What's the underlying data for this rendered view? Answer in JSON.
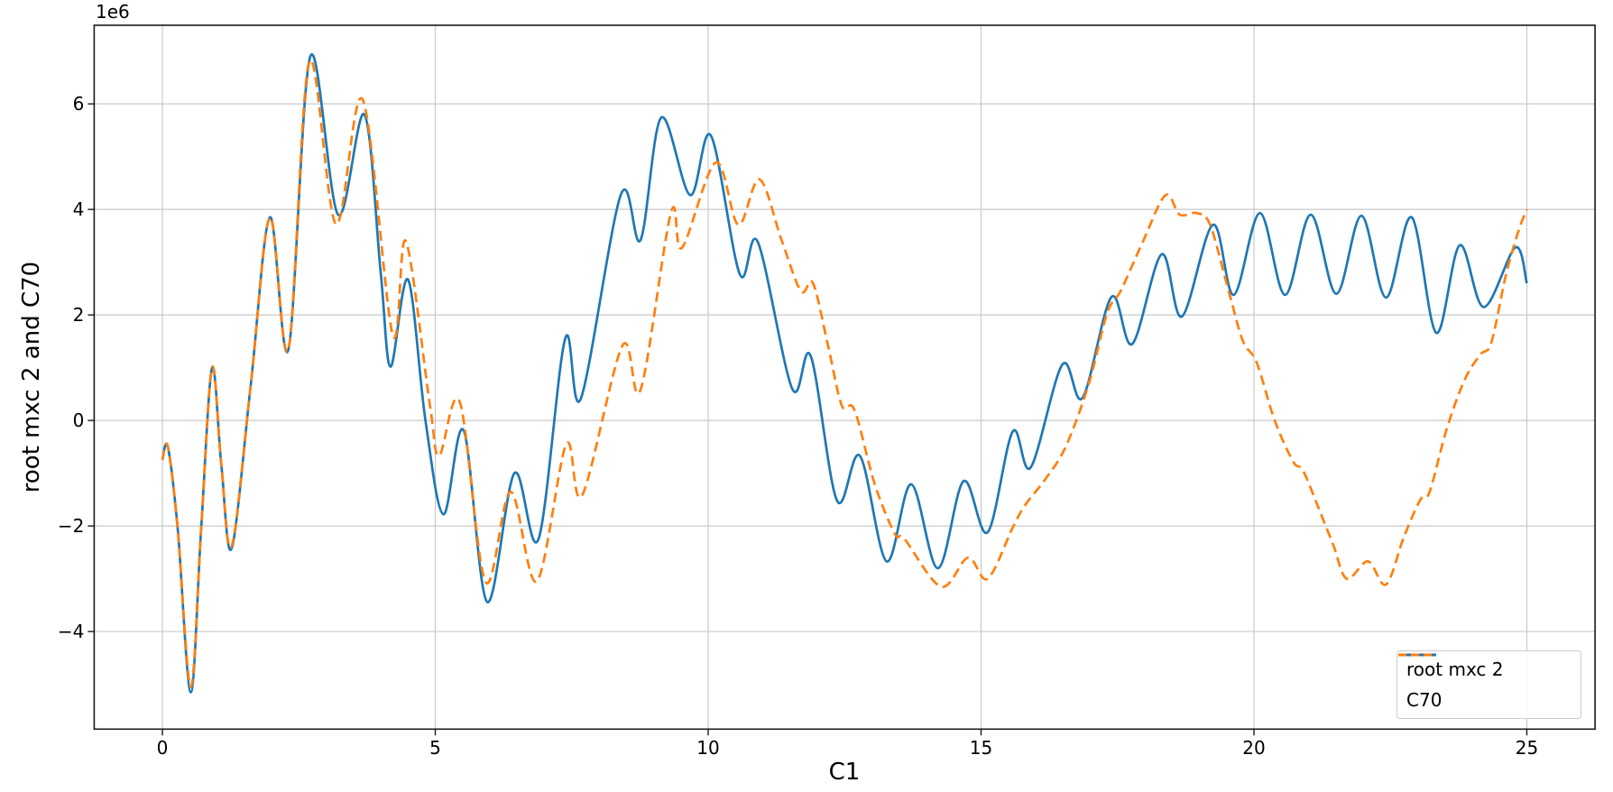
{
  "figure": {
    "xlabel": "C1",
    "ylabel": "root mxc 2 and C70",
    "offset_text": "1e6"
  },
  "legend": {
    "entries": [
      {
        "label": "root mxc 2",
        "color": "#1f77b4",
        "style": "solid"
      },
      {
        "label": "C70",
        "color": "#ff7f0e",
        "style": "dashed"
      }
    ]
  },
  "chart_data": {
    "type": "line",
    "title": "",
    "xlabel": "C1",
    "ylabel": "root mxc 2 and C70",
    "y_unit_multiplier": 1000000,
    "y_offset_text": "1e6",
    "xlim": [
      -1.25,
      26.25
    ],
    "ylim": [
      -5.85,
      7.49
    ],
    "xticks": [
      0,
      5,
      10,
      15,
      20,
      25
    ],
    "yticks": [
      -4,
      -2,
      0,
      2,
      4,
      6
    ],
    "grid": true,
    "legend_position": "lower right",
    "series": [
      {
        "name": "root mxc 2",
        "color": "#1f77b4",
        "linestyle": "solid",
        "linewidth": 2.7,
        "points": [
          [
            0.0,
            -0.75
          ],
          [
            0.1,
            -0.5
          ],
          [
            0.28,
            -2.05
          ],
          [
            0.52,
            -5.15
          ],
          [
            0.71,
            -2.05
          ],
          [
            0.91,
            1.0
          ],
          [
            1.08,
            -0.85
          ],
          [
            1.27,
            -2.42
          ],
          [
            1.62,
            0.68
          ],
          [
            1.97,
            3.85
          ],
          [
            2.31,
            1.35
          ],
          [
            2.71,
            6.9
          ],
          [
            3.22,
            3.9
          ],
          [
            3.7,
            5.8
          ],
          [
            4.0,
            2.8
          ],
          [
            4.18,
            1.02
          ],
          [
            4.5,
            2.67
          ],
          [
            4.82,
            0.0
          ],
          [
            5.15,
            -1.78
          ],
          [
            5.52,
            -0.19
          ],
          [
            5.95,
            -3.44
          ],
          [
            6.45,
            -1.0
          ],
          [
            6.89,
            -2.25
          ],
          [
            7.38,
            1.55
          ],
          [
            7.67,
            0.42
          ],
          [
            8.4,
            4.28
          ],
          [
            8.76,
            3.42
          ],
          [
            9.14,
            5.74
          ],
          [
            9.67,
            4.27
          ],
          [
            10.05,
            5.4
          ],
          [
            10.58,
            2.77
          ],
          [
            10.91,
            3.38
          ],
          [
            11.54,
            0.6
          ],
          [
            11.88,
            1.22
          ],
          [
            12.36,
            -1.52
          ],
          [
            12.78,
            -0.67
          ],
          [
            13.27,
            -2.67
          ],
          [
            13.72,
            -1.21
          ],
          [
            14.21,
            -2.8
          ],
          [
            14.68,
            -1.15
          ],
          [
            15.12,
            -2.12
          ],
          [
            15.58,
            -0.21
          ],
          [
            15.91,
            -0.89
          ],
          [
            16.49,
            1.06
          ],
          [
            16.86,
            0.43
          ],
          [
            17.39,
            2.34
          ],
          [
            17.77,
            1.45
          ],
          [
            18.31,
            3.15
          ],
          [
            18.68,
            1.97
          ],
          [
            19.25,
            3.71
          ],
          [
            19.63,
            2.38
          ],
          [
            20.11,
            3.93
          ],
          [
            20.57,
            2.38
          ],
          [
            21.04,
            3.9
          ],
          [
            21.51,
            2.4
          ],
          [
            21.97,
            3.88
          ],
          [
            22.42,
            2.33
          ],
          [
            22.89,
            3.85
          ],
          [
            23.34,
            1.66
          ],
          [
            23.77,
            3.32
          ],
          [
            24.21,
            2.15
          ],
          [
            24.79,
            3.28
          ],
          [
            25.0,
            2.6
          ]
        ]
      },
      {
        "name": "C70",
        "color": "#ff7f0e",
        "linestyle": "dashed",
        "linewidth": 2.7,
        "points": [
          [
            0.0,
            -0.75
          ],
          [
            0.1,
            -0.5
          ],
          [
            0.28,
            -2.05
          ],
          [
            0.52,
            -5.05
          ],
          [
            0.71,
            -2.05
          ],
          [
            0.91,
            1.0
          ],
          [
            1.08,
            -0.85
          ],
          [
            1.27,
            -2.38
          ],
          [
            1.62,
            0.68
          ],
          [
            1.97,
            3.85
          ],
          [
            2.31,
            1.35
          ],
          [
            2.69,
            6.8
          ],
          [
            3.18,
            3.72
          ],
          [
            3.67,
            6.08
          ],
          [
            4.22,
            1.62
          ],
          [
            4.46,
            3.4
          ],
          [
            4.9,
            0.3
          ],
          [
            5.07,
            -0.67
          ],
          [
            5.45,
            0.35
          ],
          [
            5.92,
            -3.06
          ],
          [
            6.38,
            -1.35
          ],
          [
            6.86,
            -3.05
          ],
          [
            7.4,
            -0.45
          ],
          [
            7.69,
            -1.42
          ],
          [
            8.43,
            1.42
          ],
          [
            8.76,
            0.58
          ],
          [
            9.32,
            3.95
          ],
          [
            9.52,
            3.27
          ],
          [
            10.14,
            4.89
          ],
          [
            10.55,
            3.71
          ],
          [
            10.94,
            4.57
          ],
          [
            11.35,
            3.4
          ],
          [
            11.7,
            2.45
          ],
          [
            11.92,
            2.6
          ],
          [
            12.2,
            1.4
          ],
          [
            12.45,
            0.28
          ],
          [
            12.68,
            0.2
          ],
          [
            13.05,
            -1.2
          ],
          [
            13.42,
            -2.15
          ],
          [
            13.6,
            -2.25
          ],
          [
            14.27,
            -3.15
          ],
          [
            14.76,
            -2.6
          ],
          [
            15.12,
            -3.0
          ],
          [
            15.58,
            -2.03
          ],
          [
            15.81,
            -1.6
          ],
          [
            16.18,
            -1.11
          ],
          [
            16.55,
            -0.5
          ],
          [
            16.97,
            0.68
          ],
          [
            17.31,
            2.03
          ],
          [
            17.56,
            2.46
          ],
          [
            17.97,
            3.4
          ],
          [
            18.38,
            4.27
          ],
          [
            18.64,
            3.9
          ],
          [
            18.95,
            3.93
          ],
          [
            19.2,
            3.7
          ],
          [
            19.55,
            2.4
          ],
          [
            19.8,
            1.5
          ],
          [
            20.05,
            1.1
          ],
          [
            20.38,
            0.0
          ],
          [
            20.72,
            -0.78
          ],
          [
            20.9,
            -0.95
          ],
          [
            21.18,
            -1.65
          ],
          [
            21.45,
            -2.35
          ],
          [
            21.7,
            -3.0
          ],
          [
            22.09,
            -2.67
          ],
          [
            22.42,
            -3.11
          ],
          [
            22.75,
            -2.2
          ],
          [
            23.05,
            -1.5
          ],
          [
            23.22,
            -1.35
          ],
          [
            23.53,
            -0.17
          ],
          [
            23.86,
            0.77
          ],
          [
            24.15,
            1.25
          ],
          [
            24.35,
            1.48
          ],
          [
            24.62,
            2.77
          ],
          [
            24.85,
            3.6
          ],
          [
            25.0,
            4.0
          ]
        ]
      }
    ]
  }
}
